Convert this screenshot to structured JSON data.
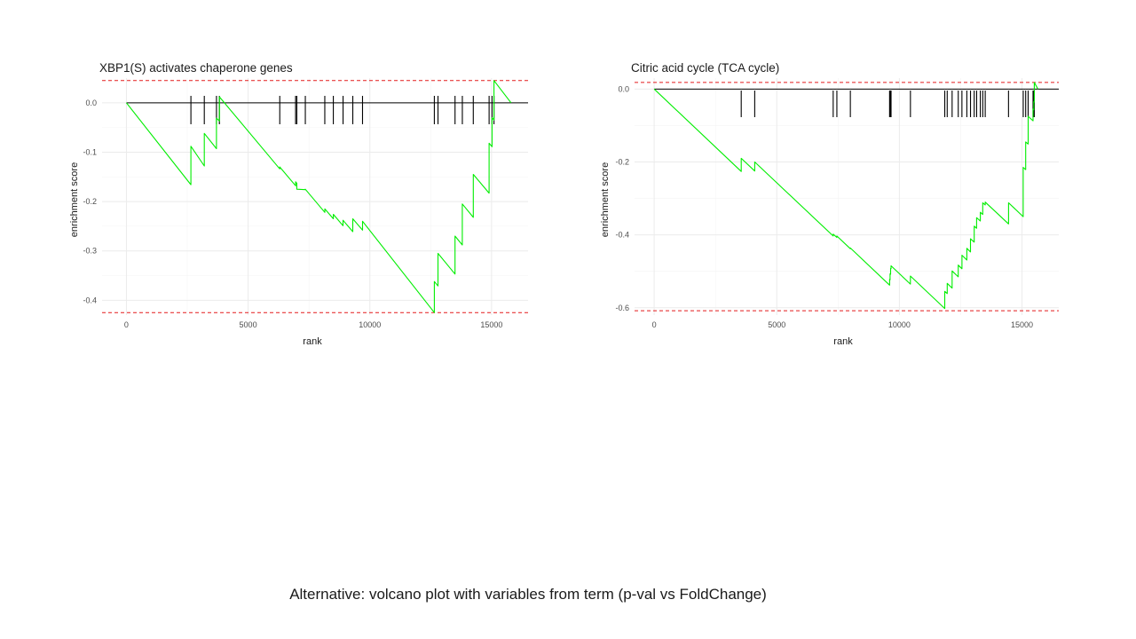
{
  "slide": {
    "caption": "Alternative: volcano plot with variables from term (p-val vs FoldChange)"
  },
  "colors": {
    "running_score": "#00ee00",
    "threshold_line": "#e31a1c",
    "hit_bars": "#000000",
    "gridline": "#ebebeb",
    "text": "#1a1a1a"
  },
  "chart_data": [
    {
      "type": "line",
      "title": "XBP1(S) activates chaperone genes",
      "xlabel": "rank",
      "ylabel": "enrichment score",
      "xlim": [
        -1000,
        16500
      ],
      "ylim": [
        -0.43,
        0.05
      ],
      "x_ticks": [
        0,
        5000,
        10000,
        15000
      ],
      "x_tick_labels": [
        "0",
        "5000",
        "10000",
        "15000"
      ],
      "y_ticks": [
        0.0,
        -0.1,
        -0.2,
        -0.3,
        -0.4
      ],
      "y_tick_labels": [
        "0.0",
        "-0.1",
        "-0.2",
        "-0.3",
        "-0.4"
      ],
      "grid": true,
      "max_deviation_line": 0.045,
      "min_deviation_line": -0.425,
      "hits": [
        2650,
        3200,
        3700,
        3820,
        6300,
        6950,
        7000,
        7350,
        8150,
        8500,
        8900,
        9300,
        9700,
        12650,
        12800,
        13500,
        13800,
        14250,
        14900,
        15020,
        15100
      ],
      "running_score": {
        "x": [
          0,
          2650,
          2650,
          3200,
          3200,
          3700,
          3700,
          3820,
          3820,
          6300,
          6300,
          6950,
          6950,
          7000,
          7000,
          7350,
          7350,
          8150,
          8150,
          8500,
          8500,
          8900,
          8900,
          9300,
          9300,
          9700,
          9700,
          12650,
          12650,
          12800,
          12800,
          13500,
          13500,
          13800,
          13800,
          14250,
          14250,
          14900,
          14900,
          15020,
          15020,
          15100,
          15100,
          15800
        ],
        "y": [
          0.0,
          -0.166,
          -0.088,
          -0.128,
          -0.062,
          -0.093,
          -0.031,
          -0.037,
          0.012,
          -0.134,
          -0.13,
          -0.168,
          -0.16,
          -0.163,
          -0.175,
          -0.176,
          -0.175,
          -0.222,
          -0.215,
          -0.235,
          -0.226,
          -0.249,
          -0.238,
          -0.261,
          -0.235,
          -0.258,
          -0.24,
          -0.425,
          -0.362,
          -0.371,
          -0.305,
          -0.347,
          -0.27,
          -0.288,
          -0.205,
          -0.232,
          -0.145,
          -0.183,
          -0.082,
          -0.089,
          -0.03,
          -0.035,
          0.045,
          0.0
        ]
      }
    },
    {
      "type": "line",
      "title": "Citric acid cycle (TCA cycle)",
      "xlabel": "rank",
      "ylabel": "enrichment score",
      "xlim": [
        -800,
        16500
      ],
      "ylim": [
        -0.62,
        0.03
      ],
      "x_ticks": [
        0,
        5000,
        10000,
        15000
      ],
      "x_tick_labels": [
        "0",
        "5000",
        "10000",
        "15000"
      ],
      "y_ticks": [
        0.0,
        -0.2,
        -0.4,
        -0.6
      ],
      "y_tick_labels": [
        "0.0",
        "-0.2",
        "-0.4",
        "-0.6"
      ],
      "grid": true,
      "max_deviation_line": 0.018,
      "min_deviation_line": -0.608,
      "hits": [
        3550,
        4100,
        7300,
        7450,
        8000,
        9600,
        9620,
        9640,
        9660,
        10450,
        11850,
        11950,
        12150,
        12400,
        12550,
        12750,
        12900,
        13050,
        13150,
        13300,
        13400,
        13500,
        14450,
        15050,
        15150,
        15250,
        15450,
        15480,
        15500
      ],
      "running_score": {
        "x": [
          0,
          3550,
          3550,
          4100,
          4100,
          7300,
          7300,
          7450,
          7450,
          8000,
          8000,
          9600,
          9600,
          9620,
          9620,
          9640,
          9640,
          9660,
          9660,
          10450,
          10450,
          11850,
          11850,
          11950,
          11950,
          12150,
          12150,
          12400,
          12400,
          12550,
          12550,
          12750,
          12750,
          12900,
          12900,
          13050,
          13050,
          13150,
          13150,
          13300,
          13300,
          13400,
          13400,
          13500,
          13500,
          14450,
          14450,
          15050,
          15050,
          15150,
          15150,
          15250,
          15250,
          15450,
          15450,
          15480,
          15480,
          15500,
          15500,
          15650
        ],
        "y": [
          0.0,
          -0.226,
          -0.19,
          -0.225,
          -0.2,
          -0.403,
          -0.398,
          -0.407,
          -0.403,
          -0.438,
          -0.436,
          -0.538,
          -0.522,
          -0.523,
          -0.507,
          -0.508,
          -0.492,
          -0.493,
          -0.485,
          -0.535,
          -0.513,
          -0.602,
          -0.555,
          -0.561,
          -0.533,
          -0.546,
          -0.499,
          -0.515,
          -0.483,
          -0.493,
          -0.456,
          -0.469,
          -0.437,
          -0.447,
          -0.411,
          -0.42,
          -0.376,
          -0.382,
          -0.353,
          -0.362,
          -0.338,
          -0.344,
          -0.312,
          -0.318,
          -0.31,
          -0.37,
          -0.312,
          -0.35,
          -0.215,
          -0.221,
          -0.145,
          -0.151,
          -0.075,
          -0.087,
          -0.055,
          -0.057,
          -0.035,
          -0.036,
          0.018,
          0.0
        ]
      }
    }
  ]
}
